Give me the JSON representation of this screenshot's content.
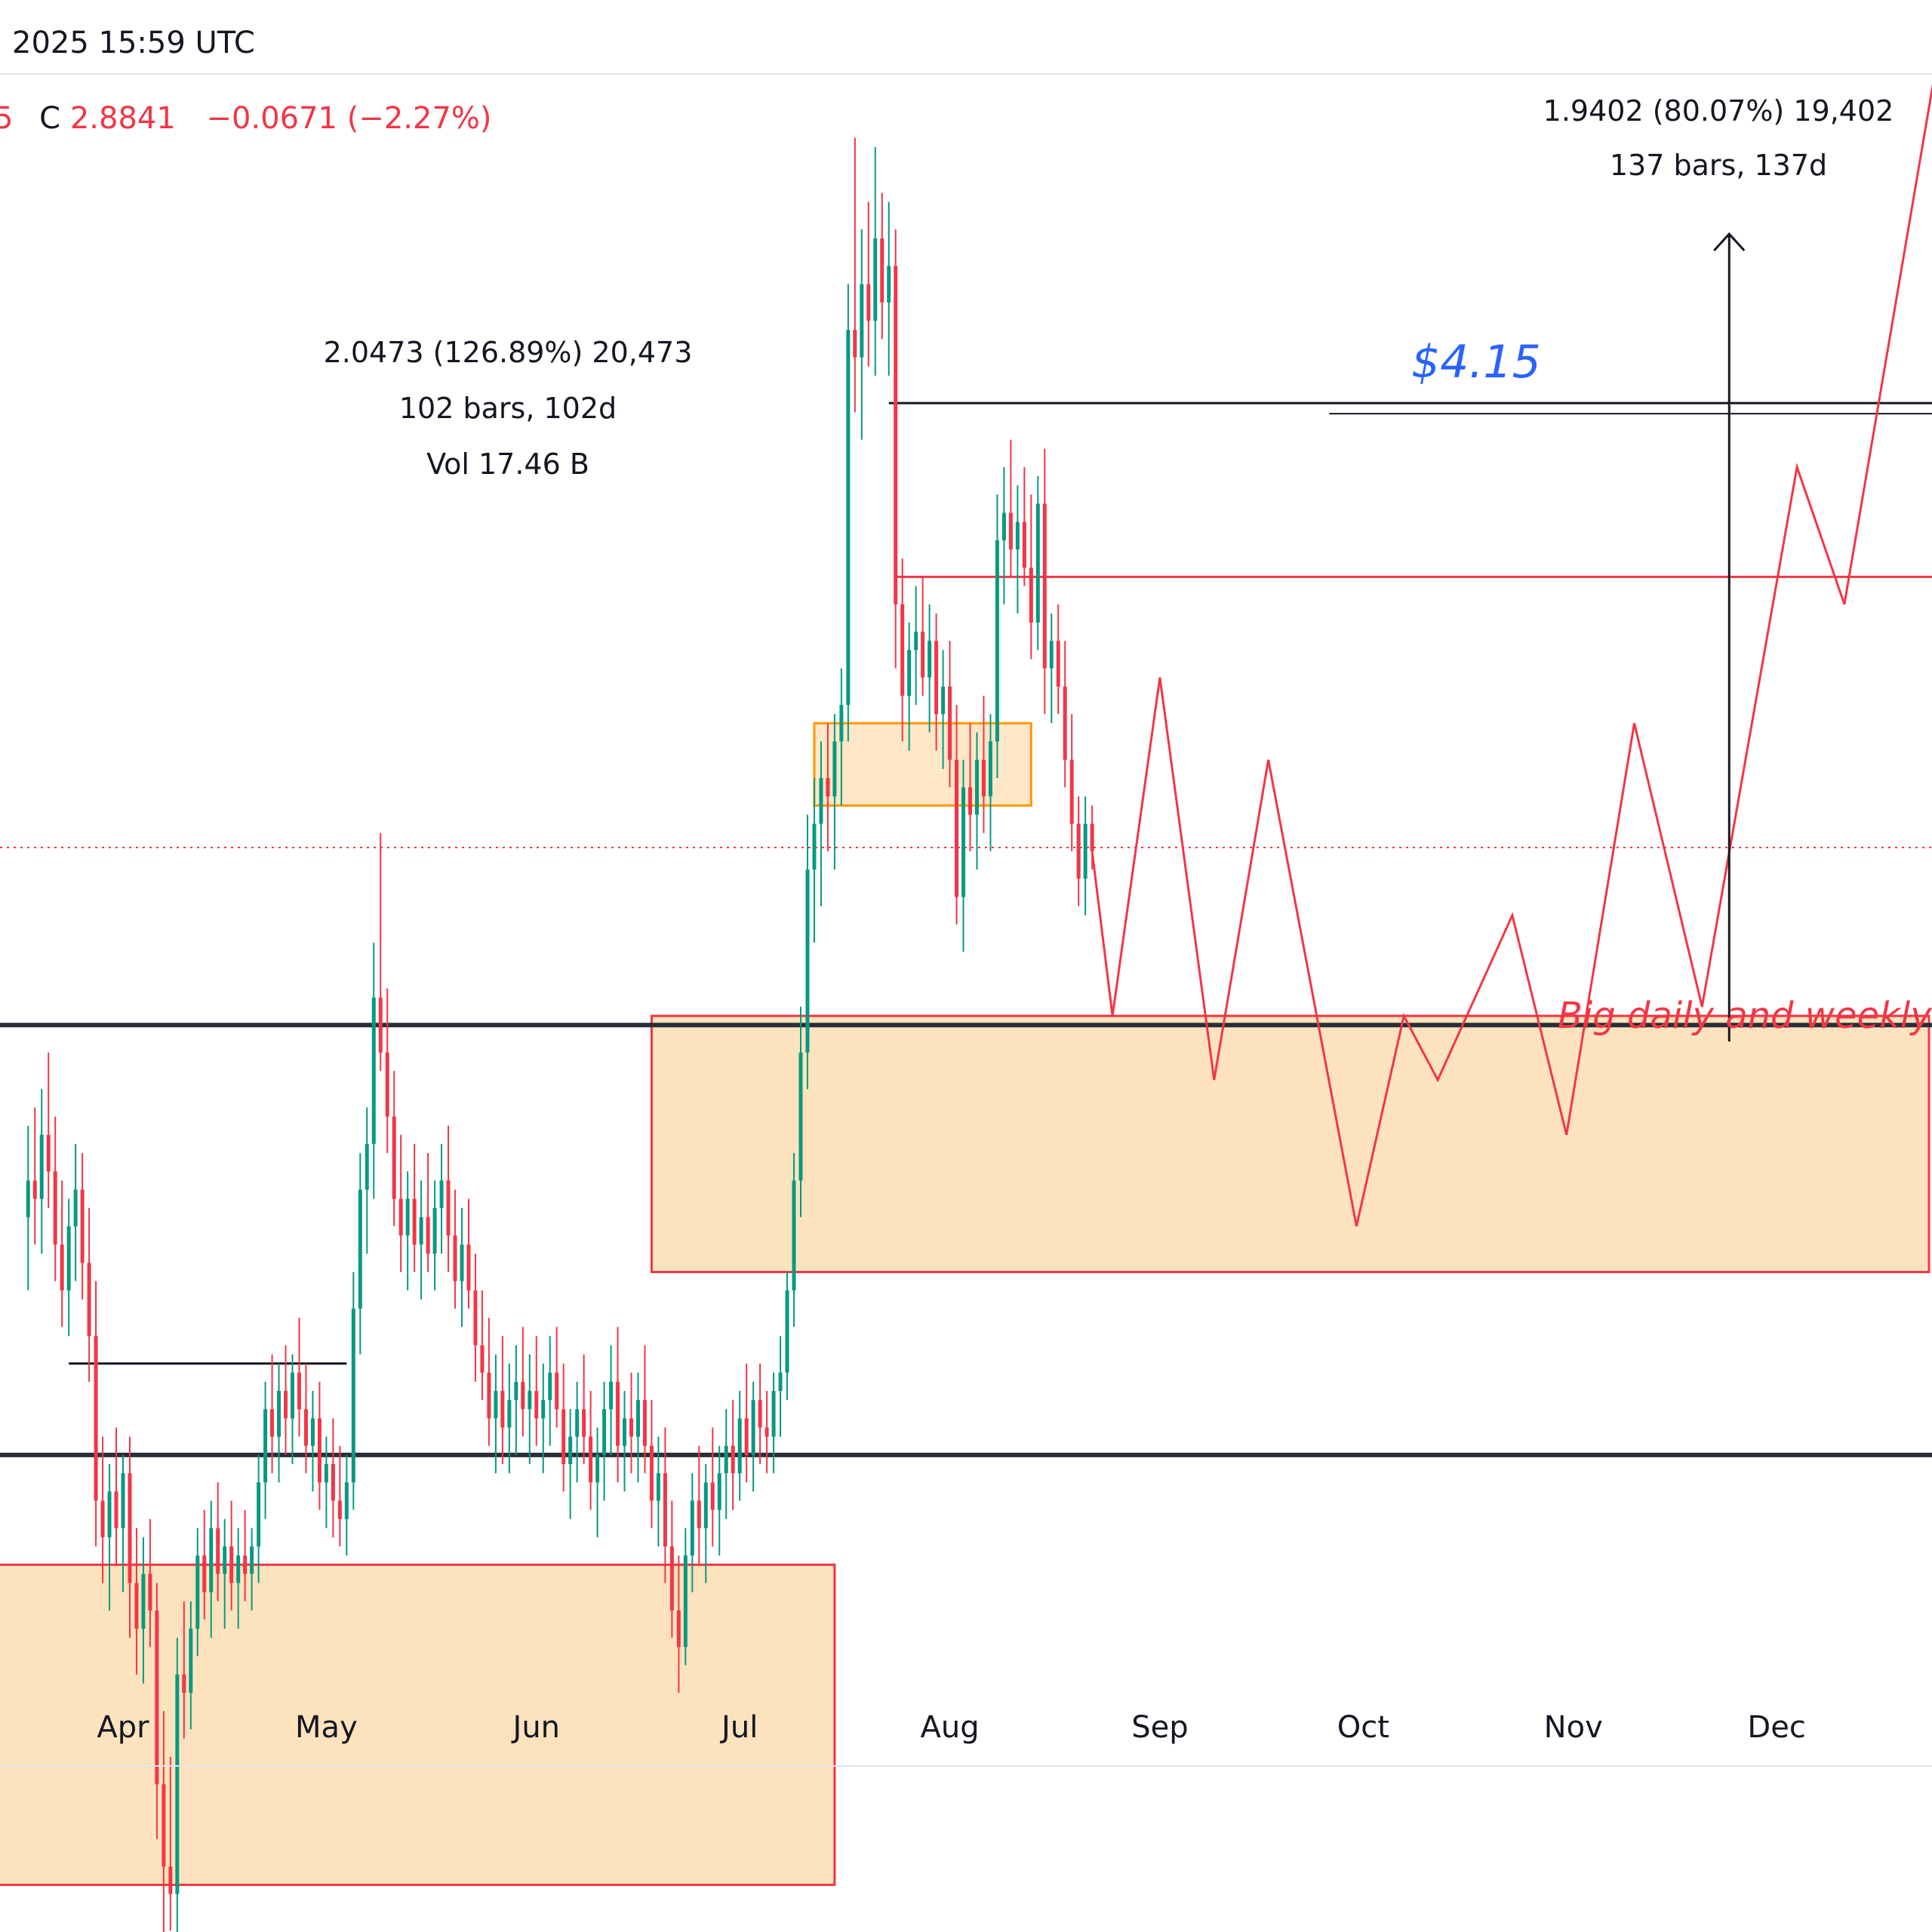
{
  "header": {
    "datetime_fragment": "2025 15:59 UTC",
    "ohlc_cut": "5",
    "close_label": "C",
    "close_value": "2.8841",
    "change": "−0.0671 (−2.27%)"
  },
  "measurements": {
    "left": {
      "line1": "2.0473 (126.89%) 20,473",
      "line2": "102 bars, 102d",
      "line3": "Vol 17.46 B"
    },
    "right": {
      "line1": "1.9402 (80.07%) 19,402",
      "line2": "137 bars, 137d"
    }
  },
  "annotations": {
    "target_price": "$4.15",
    "zone_note": "Big daily and weekly"
  },
  "colors": {
    "up": "#089981",
    "down": "#f23645",
    "target_line": "#2962ff",
    "zone_fill": "#fde3bd",
    "orange_zone_stroke": "#ff9800"
  },
  "chart_data": {
    "type": "candlestick",
    "title": "",
    "xlabel": "",
    "ylabel": "",
    "x_ticks": [
      "Apr",
      "May",
      "Jun",
      "Jul",
      "Aug",
      "Sep",
      "Oct",
      "Nov",
      "Dec"
    ],
    "ylim": [
      1.2,
      4.4
    ],
    "levels": {
      "target": 4.15,
      "current_close": 2.8841,
      "resistance_upper": 3.37,
      "resistance_mid": 3.18,
      "range_top": 2.69,
      "range_bottom": 2.22
    },
    "zones": [
      {
        "name": "lower demand zone",
        "from": "2025-03-10",
        "to": "2025-07-15",
        "low": 1.75,
        "high": 2.1
      },
      {
        "name": "big daily and weekly zone",
        "from": "2025-06-18",
        "to": "2025-12-31",
        "low": 2.42,
        "high": 2.7
      },
      {
        "name": "mid-July box",
        "from": "2025-07-12",
        "to": "2025-08-13",
        "low": 2.93,
        "high": 3.02
      }
    ],
    "projection_path": [
      {
        "date": "2025-08-22",
        "price": 2.88
      },
      {
        "date": "2025-08-25",
        "price": 2.7
      },
      {
        "date": "2025-09-01",
        "price": 3.07
      },
      {
        "date": "2025-09-09",
        "price": 2.63
      },
      {
        "date": "2025-09-17",
        "price": 2.98
      },
      {
        "date": "2025-09-30",
        "price": 2.47
      },
      {
        "date": "2025-10-07",
        "price": 2.7
      },
      {
        "date": "2025-10-12",
        "price": 2.63
      },
      {
        "date": "2025-10-23",
        "price": 2.81
      },
      {
        "date": "2025-10-31",
        "price": 2.57
      },
      {
        "date": "2025-11-10",
        "price": 3.02
      },
      {
        "date": "2025-11-20",
        "price": 2.71
      },
      {
        "date": "2025-12-04",
        "price": 3.3
      },
      {
        "date": "2025-12-11",
        "price": 3.15
      },
      {
        "date": "2025-12-31",
        "price": 4.02
      }
    ],
    "measure_ranges": [
      {
        "from": "2025-04-07",
        "to": "2025-07-18",
        "from_price": 1.61,
        "to_price": 3.66
      },
      {
        "from": "2025-07-10",
        "to": "2025-11-24",
        "from_price": 2.42,
        "to_price": 4.36
      }
    ],
    "ohlc": [
      [
        "2025-03-18",
        2.48,
        2.58,
        2.4,
        2.52
      ],
      [
        "2025-03-19",
        2.52,
        2.6,
        2.45,
        2.5
      ],
      [
        "2025-03-20",
        2.5,
        2.62,
        2.44,
        2.57
      ],
      [
        "2025-03-21",
        2.57,
        2.66,
        2.49,
        2.53
      ],
      [
        "2025-03-22",
        2.53,
        2.59,
        2.41,
        2.45
      ],
      [
        "2025-03-23",
        2.45,
        2.52,
        2.36,
        2.4
      ],
      [
        "2025-03-24",
        2.4,
        2.5,
        2.35,
        2.47
      ],
      [
        "2025-03-25",
        2.47,
        2.56,
        2.41,
        2.51
      ],
      [
        "2025-03-26",
        2.51,
        2.55,
        2.39,
        2.43
      ],
      [
        "2025-03-27",
        2.43,
        2.49,
        2.3,
        2.35
      ],
      [
        "2025-03-28",
        2.35,
        2.41,
        2.12,
        2.17
      ],
      [
        "2025-03-29",
        2.17,
        2.24,
        2.08,
        2.13
      ],
      [
        "2025-03-30",
        2.13,
        2.21,
        2.05,
        2.18
      ],
      [
        "2025-03-31",
        2.18,
        2.25,
        2.1,
        2.14
      ],
      [
        "2025-04-01",
        2.14,
        2.22,
        2.07,
        2.2
      ],
      [
        "2025-04-02",
        2.2,
        2.24,
        2.02,
        2.08
      ],
      [
        "2025-04-03",
        2.08,
        2.14,
        1.98,
        2.03
      ],
      [
        "2025-04-04",
        2.03,
        2.13,
        1.97,
        2.09
      ],
      [
        "2025-04-05",
        2.09,
        2.15,
        2.01,
        2.05
      ],
      [
        "2025-04-06",
        2.05,
        2.08,
        1.8,
        1.86
      ],
      [
        "2025-04-07",
        1.86,
        1.94,
        1.61,
        1.77
      ],
      [
        "2025-04-08",
        1.77,
        1.89,
        1.7,
        1.74
      ],
      [
        "2025-04-09",
        1.74,
        2.02,
        1.68,
        1.98
      ],
      [
        "2025-04-10",
        1.98,
        2.06,
        1.91,
        1.96
      ],
      [
        "2025-04-11",
        1.96,
        2.06,
        1.92,
        2.03
      ],
      [
        "2025-04-12",
        2.03,
        2.14,
        2.0,
        2.11
      ],
      [
        "2025-04-13",
        2.11,
        2.16,
        2.04,
        2.07
      ],
      [
        "2025-04-14",
        2.07,
        2.17,
        2.02,
        2.14
      ],
      [
        "2025-04-15",
        2.14,
        2.19,
        2.06,
        2.09
      ],
      [
        "2025-04-16",
        2.09,
        2.15,
        2.03,
        2.12
      ],
      [
        "2025-04-17",
        2.12,
        2.17,
        2.05,
        2.08
      ],
      [
        "2025-04-18",
        2.08,
        2.14,
        2.03,
        2.11
      ],
      [
        "2025-04-19",
        2.11,
        2.16,
        2.06,
        2.09
      ],
      [
        "2025-04-20",
        2.09,
        2.14,
        2.05,
        2.12
      ],
      [
        "2025-04-21",
        2.12,
        2.22,
        2.08,
        2.19
      ],
      [
        "2025-04-22",
        2.19,
        2.3,
        2.15,
        2.27
      ],
      [
        "2025-04-23",
        2.27,
        2.33,
        2.2,
        2.24
      ],
      [
        "2025-04-24",
        2.24,
        2.32,
        2.19,
        2.29
      ],
      [
        "2025-04-25",
        2.29,
        2.34,
        2.22,
        2.26
      ],
      [
        "2025-04-26",
        2.26,
        2.33,
        2.21,
        2.31
      ],
      [
        "2025-04-27",
        2.31,
        2.37,
        2.24,
        2.27
      ],
      [
        "2025-04-28",
        2.27,
        2.32,
        2.2,
        2.23
      ],
      [
        "2025-04-29",
        2.23,
        2.29,
        2.18,
        2.26
      ],
      [
        "2025-04-30",
        2.26,
        2.3,
        2.16,
        2.19
      ],
      [
        "2025-05-01",
        2.19,
        2.24,
        2.14,
        2.21
      ],
      [
        "2025-05-02",
        2.21,
        2.26,
        2.13,
        2.17
      ],
      [
        "2025-05-03",
        2.17,
        2.23,
        2.12,
        2.15
      ],
      [
        "2025-05-04",
        2.15,
        2.22,
        2.11,
        2.19
      ],
      [
        "2025-05-05",
        2.19,
        2.42,
        2.16,
        2.38
      ],
      [
        "2025-05-06",
        2.38,
        2.55,
        2.33,
        2.51
      ],
      [
        "2025-05-07",
        2.51,
        2.6,
        2.44,
        2.56
      ],
      [
        "2025-05-08",
        2.56,
        2.78,
        2.5,
        2.72
      ],
      [
        "2025-05-09",
        2.72,
        2.9,
        2.64,
        2.66
      ],
      [
        "2025-05-10",
        2.66,
        2.73,
        2.55,
        2.59
      ],
      [
        "2025-05-11",
        2.59,
        2.64,
        2.47,
        2.5
      ],
      [
        "2025-05-12",
        2.5,
        2.57,
        2.42,
        2.46
      ],
      [
        "2025-05-13",
        2.46,
        2.53,
        2.4,
        2.5
      ],
      [
        "2025-05-14",
        2.5,
        2.56,
        2.42,
        2.45
      ],
      [
        "2025-05-15",
        2.45,
        2.52,
        2.39,
        2.48
      ],
      [
        "2025-05-16",
        2.48,
        2.55,
        2.42,
        2.44
      ],
      [
        "2025-05-17",
        2.44,
        2.52,
        2.4,
        2.49
      ],
      [
        "2025-05-18",
        2.49,
        2.56,
        2.44,
        2.52
      ],
      [
        "2025-05-19",
        2.52,
        2.58,
        2.42,
        2.46
      ],
      [
        "2025-05-20",
        2.46,
        2.51,
        2.38,
        2.41
      ],
      [
        "2025-05-21",
        2.41,
        2.49,
        2.36,
        2.45
      ],
      [
        "2025-05-22",
        2.45,
        2.5,
        2.38,
        2.4
      ],
      [
        "2025-05-23",
        2.4,
        2.44,
        2.3,
        2.34
      ],
      [
        "2025-05-24",
        2.34,
        2.4,
        2.28,
        2.31
      ],
      [
        "2025-05-25",
        2.31,
        2.37,
        2.23,
        2.26
      ],
      [
        "2025-05-26",
        2.26,
        2.33,
        2.2,
        2.29
      ],
      [
        "2025-05-27",
        2.29,
        2.35,
        2.21,
        2.25
      ],
      [
        "2025-05-28",
        2.25,
        2.32,
        2.2,
        2.28
      ],
      [
        "2025-05-29",
        2.28,
        2.34,
        2.22,
        2.3
      ],
      [
        "2025-05-30",
        2.3,
        2.36,
        2.24,
        2.27
      ],
      [
        "2025-05-31",
        2.27,
        2.33,
        2.21,
        2.29
      ],
      [
        "2025-06-01",
        2.29,
        2.35,
        2.23,
        2.26
      ],
      [
        "2025-06-02",
        2.26,
        2.32,
        2.2,
        2.28
      ],
      [
        "2025-06-03",
        2.28,
        2.35,
        2.23,
        2.31
      ],
      [
        "2025-06-04",
        2.31,
        2.36,
        2.25,
        2.27
      ],
      [
        "2025-06-05",
        2.27,
        2.32,
        2.18,
        2.21
      ],
      [
        "2025-06-06",
        2.21,
        2.27,
        2.15,
        2.24
      ],
      [
        "2025-06-07",
        2.24,
        2.3,
        2.19,
        2.27
      ],
      [
        "2025-06-08",
        2.27,
        2.33,
        2.21,
        2.24
      ],
      [
        "2025-06-09",
        2.24,
        2.29,
        2.16,
        2.19
      ],
      [
        "2025-06-10",
        2.19,
        2.25,
        2.13,
        2.22
      ],
      [
        "2025-06-11",
        2.22,
        2.3,
        2.17,
        2.27
      ],
      [
        "2025-06-12",
        2.27,
        2.34,
        2.22,
        2.3
      ],
      [
        "2025-06-13",
        2.3,
        2.36,
        2.19,
        2.23
      ],
      [
        "2025-06-14",
        2.23,
        2.29,
        2.18,
        2.26
      ],
      [
        "2025-06-15",
        2.26,
        2.31,
        2.2,
        2.24
      ],
      [
        "2025-06-16",
        2.24,
        2.31,
        2.19,
        2.28
      ],
      [
        "2025-06-17",
        2.28,
        2.34,
        2.2,
        2.23
      ],
      [
        "2025-06-18",
        2.23,
        2.28,
        2.14,
        2.17
      ],
      [
        "2025-06-19",
        2.17,
        2.24,
        2.12,
        2.2
      ],
      [
        "2025-06-20",
        2.2,
        2.25,
        2.08,
        2.12
      ],
      [
        "2025-06-21",
        2.12,
        2.17,
        2.02,
        2.05
      ],
      [
        "2025-06-22",
        2.05,
        2.11,
        1.96,
        2.01
      ],
      [
        "2025-06-23",
        2.01,
        2.14,
        1.99,
        2.11
      ],
      [
        "2025-06-24",
        2.11,
        2.2,
        2.07,
        2.17
      ],
      [
        "2025-06-25",
        2.17,
        2.23,
        2.1,
        2.14
      ],
      [
        "2025-06-26",
        2.14,
        2.21,
        2.08,
        2.19
      ],
      [
        "2025-06-27",
        2.19,
        2.25,
        2.12,
        2.16
      ],
      [
        "2025-06-28",
        2.16,
        2.23,
        2.11,
        2.2
      ],
      [
        "2025-06-29",
        2.2,
        2.27,
        2.15,
        2.23
      ],
      [
        "2025-06-30",
        2.23,
        2.28,
        2.16,
        2.2
      ],
      [
        "2025-07-01",
        2.2,
        2.29,
        2.17,
        2.26
      ],
      [
        "2025-07-02",
        2.26,
        2.32,
        2.19,
        2.22
      ],
      [
        "2025-07-03",
        2.22,
        2.3,
        2.18,
        2.28
      ],
      [
        "2025-07-04",
        2.28,
        2.32,
        2.21,
        2.25
      ],
      [
        "2025-07-05",
        2.25,
        2.29,
        2.2,
        2.24
      ],
      [
        "2025-07-06",
        2.24,
        2.31,
        2.2,
        2.29
      ],
      [
        "2025-07-07",
        2.29,
        2.35,
        2.24,
        2.31
      ],
      [
        "2025-07-08",
        2.31,
        2.42,
        2.28,
        2.4
      ],
      [
        "2025-07-09",
        2.4,
        2.55,
        2.36,
        2.52
      ],
      [
        "2025-07-10",
        2.52,
        2.71,
        2.48,
        2.66
      ],
      [
        "2025-07-11",
        2.66,
        2.92,
        2.62,
        2.86
      ],
      [
        "2025-07-12",
        2.86,
        2.96,
        2.78,
        2.91
      ],
      [
        "2025-07-13",
        2.91,
        3.0,
        2.82,
        2.96
      ],
      [
        "2025-07-14",
        2.96,
        3.02,
        2.88,
        2.94
      ],
      [
        "2025-07-15",
        2.94,
        3.03,
        2.86,
        3.0
      ],
      [
        "2025-07-16",
        3.0,
        3.08,
        2.93,
        3.04
      ],
      [
        "2025-07-17",
        3.04,
        3.5,
        3.0,
        3.45
      ],
      [
        "2025-07-18",
        3.45,
        3.66,
        3.36,
        3.42
      ],
      [
        "2025-07-19",
        3.42,
        3.56,
        3.33,
        3.5
      ],
      [
        "2025-07-20",
        3.5,
        3.59,
        3.41,
        3.46
      ],
      [
        "2025-07-21",
        3.46,
        3.65,
        3.4,
        3.55
      ],
      [
        "2025-07-22",
        3.55,
        3.6,
        3.44,
        3.48
      ],
      [
        "2025-07-23",
        3.48,
        3.59,
        3.4,
        3.52
      ],
      [
        "2025-07-24",
        3.52,
        3.56,
        3.08,
        3.15
      ],
      [
        "2025-07-25",
        3.15,
        3.2,
        3.0,
        3.05
      ],
      [
        "2025-07-26",
        3.05,
        3.13,
        2.99,
        3.1
      ],
      [
        "2025-07-27",
        3.1,
        3.17,
        3.04,
        3.12
      ],
      [
        "2025-07-28",
        3.12,
        3.18,
        3.05,
        3.07
      ],
      [
        "2025-07-29",
        3.07,
        3.15,
        3.01,
        3.11
      ],
      [
        "2025-07-30",
        3.11,
        3.14,
        2.99,
        3.03
      ],
      [
        "2025-07-31",
        3.03,
        3.1,
        2.97,
        3.06
      ],
      [
        "2025-08-01",
        3.06,
        3.11,
        2.95,
        2.98
      ],
      [
        "2025-08-02",
        2.98,
        3.04,
        2.8,
        2.83
      ],
      [
        "2025-08-03",
        2.83,
        2.98,
        2.77,
        2.95
      ],
      [
        "2025-08-04",
        2.95,
        3.02,
        2.88,
        2.92
      ],
      [
        "2025-08-05",
        2.92,
        3.01,
        2.86,
        2.98
      ],
      [
        "2025-08-06",
        2.98,
        3.05,
        2.9,
        2.94
      ],
      [
        "2025-08-07",
        2.94,
        3.03,
        2.88,
        3.0
      ],
      [
        "2025-08-08",
        3.0,
        3.27,
        2.96,
        3.22
      ],
      [
        "2025-08-09",
        3.22,
        3.3,
        3.15,
        3.25
      ],
      [
        "2025-08-10",
        3.25,
        3.33,
        3.18,
        3.21
      ],
      [
        "2025-08-11",
        3.21,
        3.28,
        3.14,
        3.24
      ],
      [
        "2025-08-12",
        3.24,
        3.3,
        3.17,
        3.19
      ],
      [
        "2025-08-13",
        3.19,
        3.27,
        3.09,
        3.13
      ],
      [
        "2025-08-14",
        3.13,
        3.29,
        3.1,
        3.26
      ],
      [
        "2025-08-15",
        3.26,
        3.32,
        3.03,
        3.08
      ],
      [
        "2025-08-16",
        3.08,
        3.14,
        3.02,
        3.11
      ],
      [
        "2025-08-17",
        3.11,
        3.15,
        3.03,
        3.06
      ],
      [
        "2025-08-18",
        3.06,
        3.11,
        2.95,
        2.98
      ],
      [
        "2025-08-19",
        2.98,
        3.03,
        2.88,
        2.91
      ],
      [
        "2025-08-20",
        2.91,
        2.94,
        2.82,
        2.85
      ],
      [
        "2025-08-21",
        2.85,
        2.94,
        2.81,
        2.91
      ],
      [
        "2025-08-22",
        2.91,
        2.93,
        2.86,
        2.88
      ]
    ]
  }
}
